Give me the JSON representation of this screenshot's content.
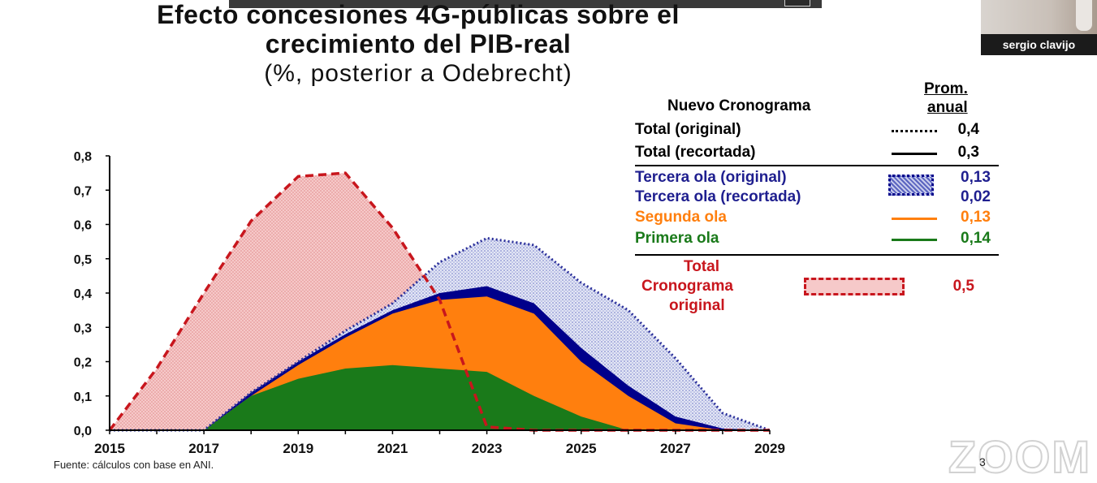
{
  "header": {
    "title_line1": "Efecto concesiones 4G-públicas sobre el",
    "title_line2": "crecimiento del PIB-real",
    "subtitle": "(%, posterior a Odebrecht)"
  },
  "video_tile": {
    "participant_name": "sergio clavijo"
  },
  "legend": {
    "heading": "Nuevo Cronograma",
    "prom_heading_line1": "Prom.",
    "prom_heading_line2": "anual",
    "rows": [
      {
        "label": "Total (original)",
        "value": "0,4",
        "color": "#000000",
        "style": "dotted"
      },
      {
        "label": "Total (recortada)",
        "value": "0,3",
        "color": "#000000",
        "style": "solid"
      },
      {
        "label": "Tercera ola (original)",
        "value": "0,13",
        "color": "#1f1f8f",
        "style": "hatched-box"
      },
      {
        "label": "Tercera ola (recortada)",
        "value": "0,02",
        "color": "#1f1f8f",
        "style": "box"
      },
      {
        "label": "Segunda ola",
        "value": "0,13",
        "color": "#ff7f0e",
        "style": "solid"
      },
      {
        "label": "Primera ola",
        "value": "0,14",
        "color": "#1a7a1a",
        "style": "solid"
      }
    ],
    "total_original_line1": "Total",
    "total_original_line2": "Cronograma",
    "total_original_line3": "original",
    "total_original_value": "0,5",
    "total_original_color": "#c8161d"
  },
  "chart_data": {
    "type": "area",
    "x": [
      2015,
      2016,
      2017,
      2018,
      2019,
      2020,
      2021,
      2022,
      2023,
      2024,
      2025,
      2026,
      2027,
      2028,
      2029
    ],
    "x_tick_labels": [
      "2015",
      "2017",
      "2019",
      "2021",
      "2023",
      "2025",
      "2027",
      "2029"
    ],
    "y_tick_labels": [
      "0,0",
      "0,1",
      "0,2",
      "0,3",
      "0,4",
      "0,5",
      "0,6",
      "0,7",
      "0,8"
    ],
    "ylim": [
      0,
      0.8
    ],
    "xlim": [
      2015,
      2029
    ],
    "series": [
      {
        "name": "Primera ola",
        "color": "#1a7a1a",
        "values": [
          0,
          0,
          0,
          0.1,
          0.15,
          0.18,
          0.19,
          0.18,
          0.17,
          0.1,
          0.04,
          0,
          0,
          0,
          0
        ]
      },
      {
        "name": "Segunda ola",
        "color": "#ff7f0e",
        "values": [
          0,
          0,
          0,
          0.1,
          0.19,
          0.27,
          0.34,
          0.38,
          0.39,
          0.34,
          0.2,
          0.1,
          0.02,
          0,
          0
        ]
      },
      {
        "name": "Tercera ola (recortada)",
        "color": "#00008b",
        "values": [
          0,
          0,
          0,
          0.11,
          0.2,
          0.28,
          0.35,
          0.4,
          0.42,
          0.37,
          0.24,
          0.13,
          0.04,
          0.005,
          0
        ]
      },
      {
        "name": "Tercera ola (original)",
        "color": "#1f1f8f",
        "values": [
          0,
          0,
          0,
          0.11,
          0.2,
          0.29,
          0.37,
          0.49,
          0.56,
          0.54,
          0.43,
          0.35,
          0.21,
          0.05,
          0
        ]
      },
      {
        "name": "Total Cronograma original",
        "color": "#c8161d",
        "values": [
          0,
          0.18,
          0.4,
          0.61,
          0.74,
          0.75,
          0.59,
          0.38,
          0.01,
          0,
          0,
          0,
          0,
          0,
          0
        ]
      }
    ],
    "annotations": [
      "Fuente: cálculos con base en ANI."
    ],
    "legend_position": "right"
  },
  "footer": {
    "source": "Fuente: cálculos con base en ANI.",
    "page_number": "3",
    "watermark": "ZOOM"
  }
}
